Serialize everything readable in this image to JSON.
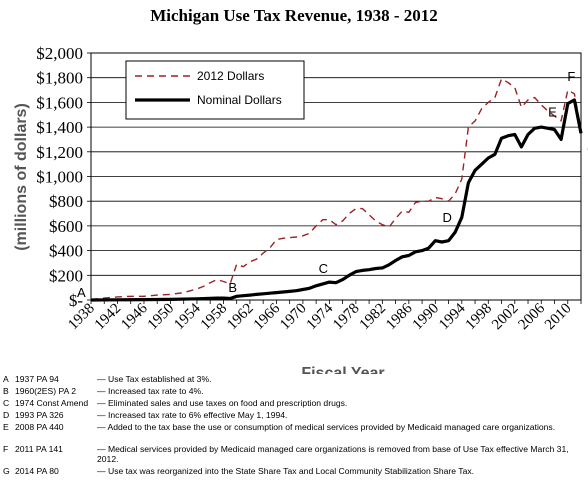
{
  "chart_data": {
    "type": "line",
    "title": "Michigan Use Tax Revenue, 1938 - 2012",
    "xlabel": "Fiscal Year",
    "ylabel": "(millions of dollars)",
    "xlim": [
      1938,
      2012
    ],
    "ylim": [
      0,
      2000
    ],
    "x_ticks": [
      "1938",
      "1942",
      "1946",
      "1950",
      "1954",
      "1958",
      "1962",
      "1966",
      "1970",
      "1974",
      "1978",
      "1982",
      "1986",
      "1990",
      "1994",
      "1998",
      "2002",
      "2006",
      "2010"
    ],
    "x_tick_values": [
      1938,
      1942,
      1946,
      1950,
      1954,
      1958,
      1962,
      1966,
      1970,
      1974,
      1978,
      1982,
      1986,
      1990,
      1994,
      1998,
      2002,
      2006,
      2010
    ],
    "y_ticks": [
      "$-",
      "$200",
      "$400",
      "$600",
      "$800",
      "$1,000",
      "$1,200",
      "$1,400",
      "$1,600",
      "$1,800",
      "$2,000"
    ],
    "y_tick_values": [
      0,
      200,
      400,
      600,
      800,
      1000,
      1200,
      1400,
      1600,
      1800,
      2000
    ],
    "grid": true,
    "legend_position": "top-left",
    "series": [
      {
        "name": "2012 Dollars",
        "color": "#9b2226",
        "style": "dashed",
        "points": [
          [
            1938,
            5
          ],
          [
            1940,
            15
          ],
          [
            1942,
            25
          ],
          [
            1944,
            30
          ],
          [
            1946,
            30
          ],
          [
            1948,
            40
          ],
          [
            1950,
            45
          ],
          [
            1952,
            60
          ],
          [
            1954,
            90
          ],
          [
            1955,
            110
          ],
          [
            1956,
            140
          ],
          [
            1957,
            165
          ],
          [
            1958,
            150
          ],
          [
            1959,
            130
          ],
          [
            1960,
            290
          ],
          [
            1961,
            270
          ],
          [
            1962,
            310
          ],
          [
            1963,
            330
          ],
          [
            1964,
            380
          ],
          [
            1965,
            420
          ],
          [
            1966,
            490
          ],
          [
            1967,
            500
          ],
          [
            1968,
            505
          ],
          [
            1969,
            510
          ],
          [
            1970,
            520
          ],
          [
            1971,
            540
          ],
          [
            1972,
            600
          ],
          [
            1973,
            650
          ],
          [
            1974,
            650
          ],
          [
            1975,
            610
          ],
          [
            1976,
            640
          ],
          [
            1977,
            700
          ],
          [
            1978,
            740
          ],
          [
            1979,
            740
          ],
          [
            1980,
            690
          ],
          [
            1981,
            640
          ],
          [
            1982,
            610
          ],
          [
            1983,
            590
          ],
          [
            1984,
            660
          ],
          [
            1985,
            720
          ],
          [
            1986,
            710
          ],
          [
            1987,
            790
          ],
          [
            1988,
            800
          ],
          [
            1989,
            800
          ],
          [
            1990,
            830
          ],
          [
            1991,
            820
          ],
          [
            1992,
            800
          ],
          [
            1993,
            860
          ],
          [
            1994,
            980
          ],
          [
            1995,
            1400
          ],
          [
            1996,
            1450
          ],
          [
            1997,
            1550
          ],
          [
            1998,
            1600
          ],
          [
            1999,
            1640
          ],
          [
            2000,
            1790
          ],
          [
            2001,
            1760
          ],
          [
            2002,
            1720
          ],
          [
            2003,
            1560
          ],
          [
            2004,
            1620
          ],
          [
            2005,
            1640
          ],
          [
            2006,
            1580
          ],
          [
            2007,
            1530
          ],
          [
            2008,
            1490
          ],
          [
            2009,
            1450
          ],
          [
            2010,
            1700
          ],
          [
            2011,
            1670
          ],
          [
            2012,
            1380
          ]
        ]
      },
      {
        "name": "Nominal Dollars",
        "color": "#000000",
        "style": "solid",
        "points": [
          [
            1938,
            0
          ],
          [
            1942,
            2
          ],
          [
            1946,
            3
          ],
          [
            1950,
            5
          ],
          [
            1954,
            10
          ],
          [
            1957,
            15
          ],
          [
            1958,
            15
          ],
          [
            1959,
            12
          ],
          [
            1960,
            30
          ],
          [
            1961,
            35
          ],
          [
            1962,
            40
          ],
          [
            1963,
            45
          ],
          [
            1964,
            50
          ],
          [
            1965,
            55
          ],
          [
            1966,
            60
          ],
          [
            1967,
            65
          ],
          [
            1968,
            70
          ],
          [
            1969,
            75
          ],
          [
            1970,
            85
          ],
          [
            1971,
            95
          ],
          [
            1972,
            115
          ],
          [
            1973,
            130
          ],
          [
            1974,
            145
          ],
          [
            1975,
            140
          ],
          [
            1976,
            165
          ],
          [
            1977,
            200
          ],
          [
            1978,
            230
          ],
          [
            1979,
            240
          ],
          [
            1980,
            245
          ],
          [
            1981,
            255
          ],
          [
            1982,
            260
          ],
          [
            1983,
            285
          ],
          [
            1984,
            320
          ],
          [
            1985,
            350
          ],
          [
            1986,
            360
          ],
          [
            1987,
            390
          ],
          [
            1988,
            400
          ],
          [
            1989,
            420
          ],
          [
            1990,
            480
          ],
          [
            1991,
            470
          ],
          [
            1992,
            480
          ],
          [
            1993,
            550
          ],
          [
            1994,
            670
          ],
          [
            1995,
            950
          ],
          [
            1996,
            1050
          ],
          [
            1997,
            1100
          ],
          [
            1998,
            1150
          ],
          [
            1999,
            1180
          ],
          [
            2000,
            1310
          ],
          [
            2001,
            1330
          ],
          [
            2002,
            1340
          ],
          [
            2003,
            1240
          ],
          [
            2004,
            1340
          ],
          [
            2005,
            1390
          ],
          [
            2006,
            1400
          ],
          [
            2007,
            1390
          ],
          [
            2008,
            1380
          ],
          [
            2009,
            1300
          ],
          [
            2010,
            1590
          ],
          [
            2011,
            1620
          ],
          [
            2012,
            1350
          ]
        ]
      }
    ],
    "annotations": [
      {
        "label": "A",
        "x": 1937,
        "y": 0
      },
      {
        "label": "B",
        "x": 1960,
        "y": 0
      },
      {
        "label": "C",
        "x": 1974,
        "y": 145
      },
      {
        "label": "D",
        "x": 1993,
        "y": 550
      },
      {
        "label": "E",
        "x": 2008,
        "y": 1380
      },
      {
        "label": "F",
        "x": 2011,
        "y": 1620
      },
      {
        "label": "G",
        "x": 2014,
        "y": 1350
      }
    ]
  },
  "notes": [
    {
      "letter": "A",
      "law": "1937  PA 94",
      "text": "— Use Tax established at 3%."
    },
    {
      "letter": "B",
      "law": "1960(2ES) PA 2",
      "text": "— Increased tax rate to 4%."
    },
    {
      "letter": "C",
      "law": "1974  Const Amend",
      "text": "— Eliminated sales and use taxes on food and prescription drugs."
    },
    {
      "letter": "D",
      "law": "1993  PA 326",
      "text": "— Increased tax rate to 6% effective May 1, 1994."
    },
    {
      "letter": "E",
      "law": "2008  PA 440",
      "text": "— Added to the tax base the use or consumption of medical services provided by Medicaid managed care organizations."
    },
    {
      "letter": "F",
      "law": "2011  PA 141",
      "text": "— Medical services provided by Medicaid managed care organizations is removed from base of Use Tax effective March 31, 2012."
    },
    {
      "letter": "G",
      "law": "2014  PA 80",
      "text": "— Use tax was reorganized into the State Share Tax and Local Community Stabilization Share Tax."
    }
  ]
}
